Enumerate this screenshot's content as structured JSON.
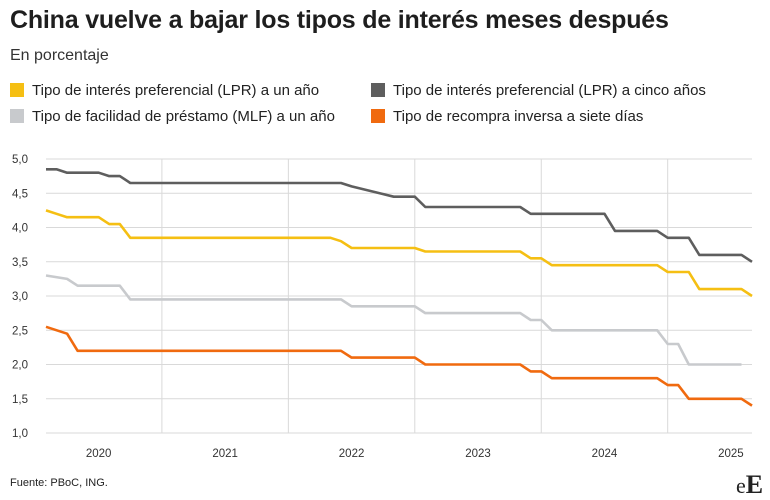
{
  "title": "China vuelve a bajar los tipos de interés meses después",
  "subtitle": "En porcentaje",
  "source": "Fuente: PBoC, ING.",
  "logo": {
    "small": "e",
    "big": "E"
  },
  "colors": {
    "lpr_1y": "#f5bf13",
    "lpr_5y": "#5e5e5e",
    "mlf": "#c8cacd",
    "repo_7d": "#f06a0f",
    "grid": "#d9d9d9"
  },
  "legend": [
    {
      "label": "Tipo de interés preferencial (LPR) a un año",
      "color": "#f5bf13"
    },
    {
      "label": "Tipo de interés preferencial (LPR) a cinco años",
      "color": "#5e5e5e"
    },
    {
      "label": "Tipo de facilidad de préstamo (MLF) a un año",
      "color": "#c8cacd"
    },
    {
      "label": "Tipo de recompra inversa a siete días",
      "color": "#f06a0f"
    }
  ],
  "chart_data": {
    "type": "line",
    "ylim": [
      1.0,
      5.0
    ],
    "xlim": [
      "2019-08",
      "2025-03"
    ],
    "y_ticks": [
      "5,0",
      "4,5",
      "4,0",
      "3,5",
      "3,0",
      "2,5",
      "2,0",
      "1,5",
      "1,0"
    ],
    "x_ticks": [
      {
        "label": "2020",
        "at": "2020-01"
      },
      {
        "label": "2021",
        "at": "2021-01"
      },
      {
        "label": "2022",
        "at": "2022-01"
      },
      {
        "label": "2023",
        "at": "2023-01"
      },
      {
        "label": "2024",
        "at": "2024-01"
      },
      {
        "label": "2025",
        "at": "2025-01"
      }
    ],
    "year_grid": [
      "2020-07",
      "2021-07",
      "2022-07",
      "2023-07",
      "2024-07"
    ],
    "grid": true,
    "series": [
      {
        "name": "Tipo de interés preferencial (LPR) a cinco años",
        "color": "#5e5e5e",
        "points": [
          [
            "2019-08",
            4.85
          ],
          [
            "2019-09",
            4.85
          ],
          [
            "2019-10",
            4.8
          ],
          [
            "2019-11",
            4.8
          ],
          [
            "2019-12",
            4.8
          ],
          [
            "2020-01",
            4.8
          ],
          [
            "2020-02",
            4.75
          ],
          [
            "2020-03",
            4.75
          ],
          [
            "2020-04",
            4.65
          ],
          [
            "2021-11",
            4.65
          ],
          [
            "2021-12",
            4.65
          ],
          [
            "2022-01",
            4.6
          ],
          [
            "2022-05",
            4.45
          ],
          [
            "2022-07",
            4.45
          ],
          [
            "2022-08",
            4.3
          ],
          [
            "2023-05",
            4.3
          ],
          [
            "2023-06",
            4.2
          ],
          [
            "2024-01",
            4.2
          ],
          [
            "2024-02",
            3.95
          ],
          [
            "2024-06",
            3.95
          ],
          [
            "2024-07",
            3.85
          ],
          [
            "2024-09",
            3.85
          ],
          [
            "2024-10",
            3.6
          ],
          [
            "2025-02",
            3.6
          ],
          [
            "2025-03",
            3.5
          ]
        ]
      },
      {
        "name": "Tipo de interés preferencial (LPR) a un año",
        "color": "#f5bf13",
        "points": [
          [
            "2019-08",
            4.25
          ],
          [
            "2019-09",
            4.2
          ],
          [
            "2019-10",
            4.15
          ],
          [
            "2019-11",
            4.15
          ],
          [
            "2019-12",
            4.15
          ],
          [
            "2020-01",
            4.15
          ],
          [
            "2020-02",
            4.05
          ],
          [
            "2020-03",
            4.05
          ],
          [
            "2020-04",
            3.85
          ],
          [
            "2021-11",
            3.85
          ],
          [
            "2021-12",
            3.8
          ],
          [
            "2022-01",
            3.7
          ],
          [
            "2022-07",
            3.7
          ],
          [
            "2022-08",
            3.65
          ],
          [
            "2023-05",
            3.65
          ],
          [
            "2023-06",
            3.55
          ],
          [
            "2023-07",
            3.55
          ],
          [
            "2023-08",
            3.45
          ],
          [
            "2024-06",
            3.45
          ],
          [
            "2024-07",
            3.35
          ],
          [
            "2024-09",
            3.35
          ],
          [
            "2024-10",
            3.1
          ],
          [
            "2025-02",
            3.1
          ],
          [
            "2025-03",
            3.0
          ]
        ]
      },
      {
        "name": "Tipo de facilidad de préstamo (MLF) a un año",
        "color": "#c8cacd",
        "points": [
          [
            "2019-08",
            3.3
          ],
          [
            "2019-10",
            3.25
          ],
          [
            "2019-11",
            3.15
          ],
          [
            "2019-12",
            3.15
          ],
          [
            "2020-01",
            3.15
          ],
          [
            "2020-02",
            3.15
          ],
          [
            "2020-03",
            3.15
          ],
          [
            "2020-04",
            2.95
          ],
          [
            "2021-11",
            2.95
          ],
          [
            "2021-12",
            2.95
          ],
          [
            "2022-01",
            2.85
          ],
          [
            "2022-07",
            2.85
          ],
          [
            "2022-08",
            2.75
          ],
          [
            "2023-05",
            2.75
          ],
          [
            "2023-06",
            2.65
          ],
          [
            "2023-07",
            2.65
          ],
          [
            "2023-08",
            2.5
          ],
          [
            "2024-06",
            2.5
          ],
          [
            "2024-07",
            2.3
          ],
          [
            "2024-08",
            2.3
          ],
          [
            "2024-09",
            2.0
          ],
          [
            "2025-02",
            2.0
          ]
        ]
      },
      {
        "name": "Tipo de recompra inversa a siete días",
        "color": "#f06a0f",
        "points": [
          [
            "2019-08",
            2.55
          ],
          [
            "2019-10",
            2.45
          ],
          [
            "2019-11",
            2.2
          ],
          [
            "2019-12",
            2.2
          ],
          [
            "2020-01",
            2.2
          ],
          [
            "2020-02",
            2.2
          ],
          [
            "2020-03",
            2.2
          ],
          [
            "2020-04",
            2.2
          ],
          [
            "2021-11",
            2.2
          ],
          [
            "2021-12",
            2.2
          ],
          [
            "2022-01",
            2.1
          ],
          [
            "2022-07",
            2.1
          ],
          [
            "2022-08",
            2.0
          ],
          [
            "2023-05",
            2.0
          ],
          [
            "2023-06",
            1.9
          ],
          [
            "2023-07",
            1.9
          ],
          [
            "2023-08",
            1.8
          ],
          [
            "2024-06",
            1.8
          ],
          [
            "2024-07",
            1.7
          ],
          [
            "2024-08",
            1.7
          ],
          [
            "2024-09",
            1.5
          ],
          [
            "2025-02",
            1.5
          ],
          [
            "2025-03",
            1.4
          ]
        ]
      }
    ]
  }
}
